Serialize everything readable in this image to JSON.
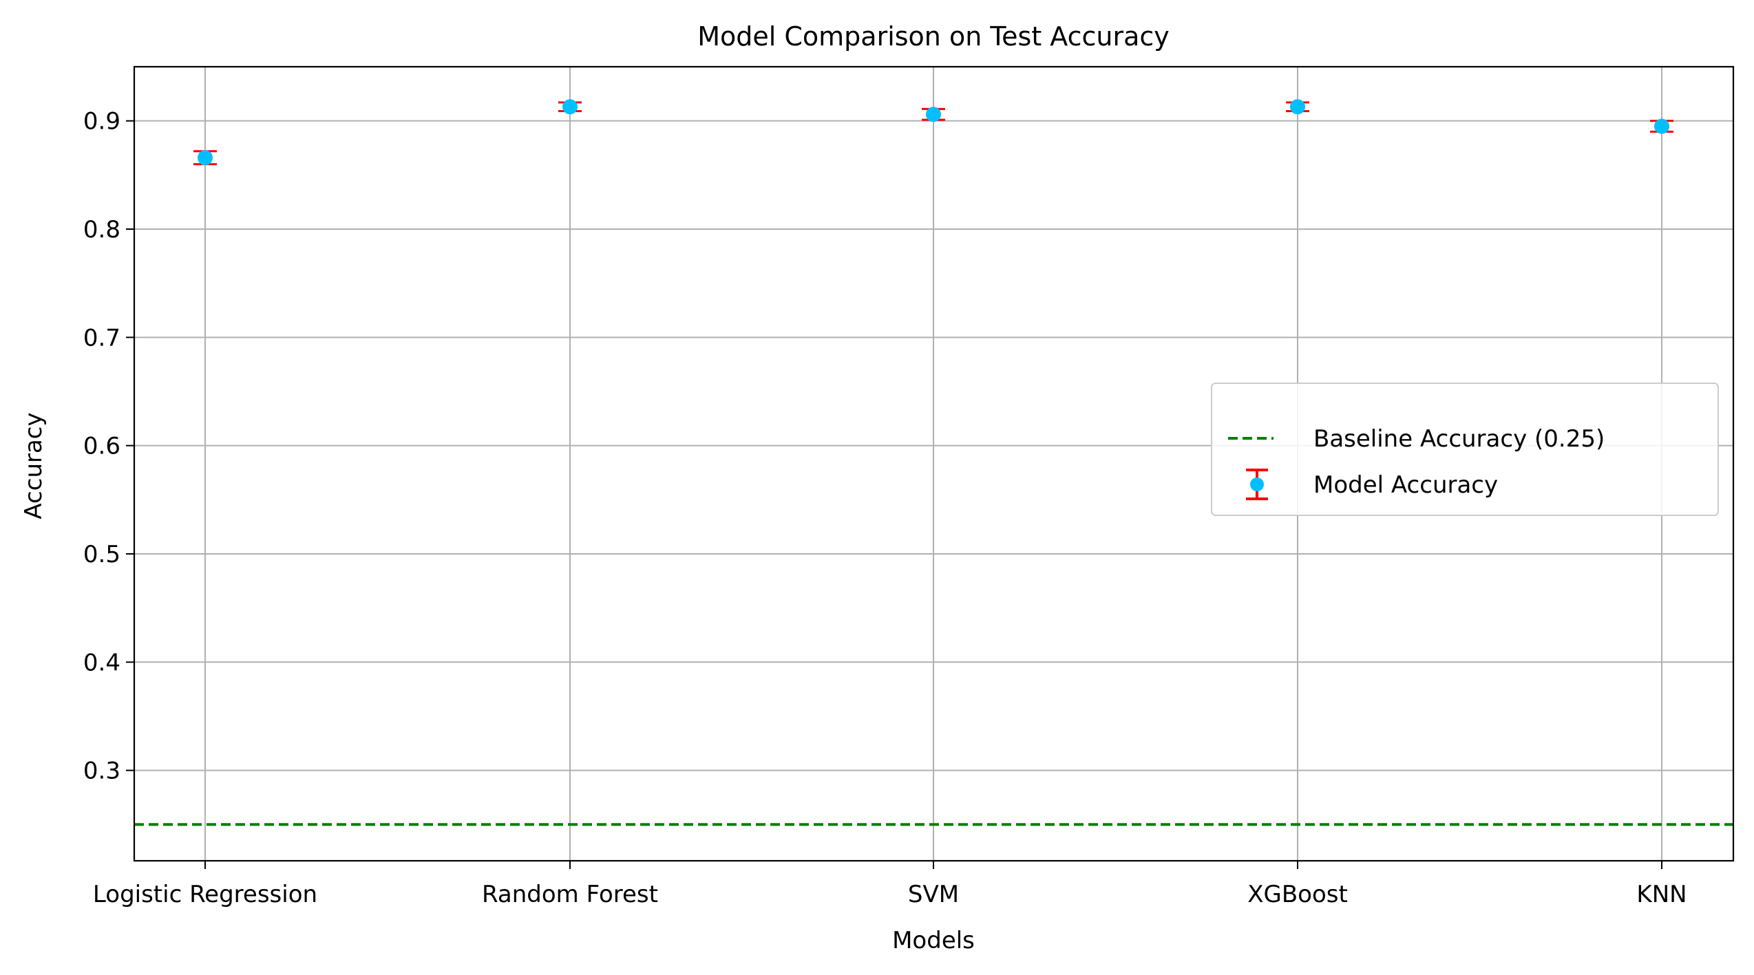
{
  "chart_data": {
    "type": "scatter",
    "title": "Model Comparison on Test Accuracy",
    "xlabel": "Models",
    "ylabel": "Accuracy",
    "categories": [
      "Logistic Regression",
      "Random Forest",
      "SVM",
      "XGBoost",
      "KNN"
    ],
    "series": [
      {
        "name": "Model Accuracy",
        "values": [
          0.866,
          0.913,
          0.906,
          0.913,
          0.895
        ],
        "error": [
          0.006,
          0.004,
          0.005,
          0.004,
          0.005
        ],
        "marker_color": "#00bfff",
        "error_color": "#ff0000"
      }
    ],
    "baseline": {
      "name": "Baseline Accuracy (0.25)",
      "value": 0.25,
      "color": "#008000",
      "style": "dashed"
    },
    "yticks": [
      "0.3",
      "0.4",
      "0.5",
      "0.6",
      "0.7",
      "0.8",
      "0.9"
    ],
    "ylim": [
      0.2165,
      0.95
    ],
    "grid": true,
    "legend_position": "center-right"
  }
}
